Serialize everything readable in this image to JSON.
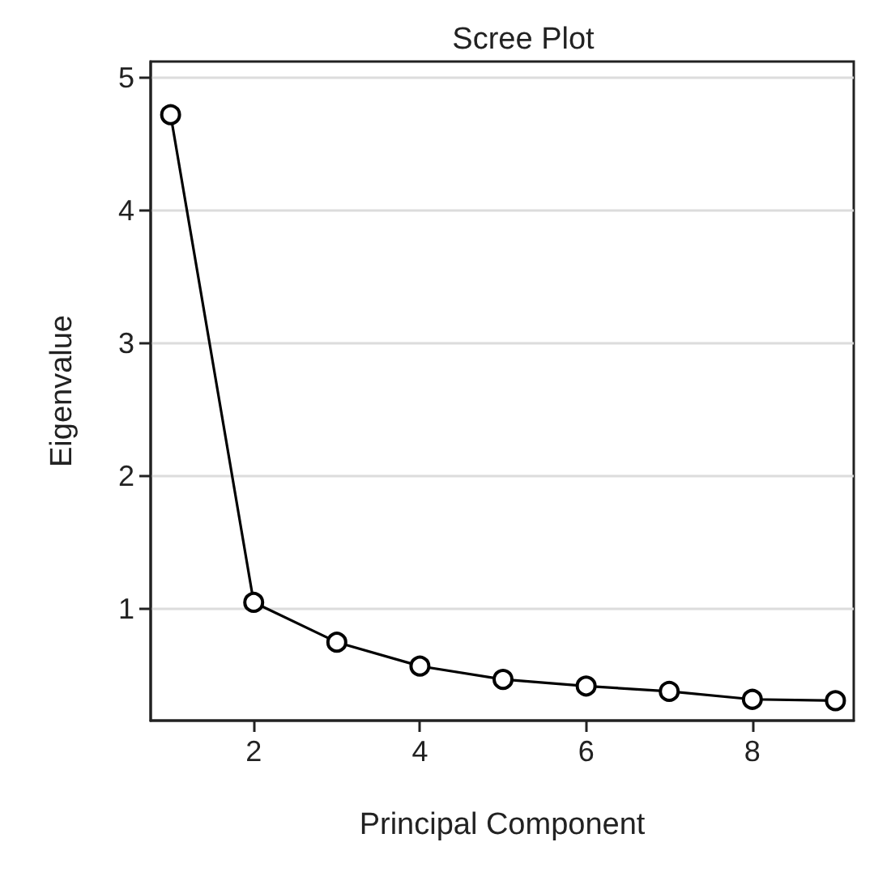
{
  "chart_data": {
    "type": "line",
    "title": "Scree Plot",
    "xlabel": "Principal Component",
    "ylabel": "Eigenvalue",
    "x": [
      1,
      2,
      3,
      4,
      5,
      6,
      7,
      8,
      9
    ],
    "series": [
      {
        "color": "#000000",
        "values": [
          4.72,
          1.05,
          0.75,
          0.57,
          0.47,
          0.42,
          0.38,
          0.32,
          0.31
        ]
      }
    ],
    "xlim": [
      0.76,
      9.22
    ],
    "xticks": [
      2,
      4,
      6,
      8
    ],
    "ylim": [
      0.16,
      5.12
    ],
    "yticks": [
      1,
      2,
      3,
      4,
      5
    ],
    "grid": "y",
    "marker": "circle",
    "line_style": "solid"
  }
}
